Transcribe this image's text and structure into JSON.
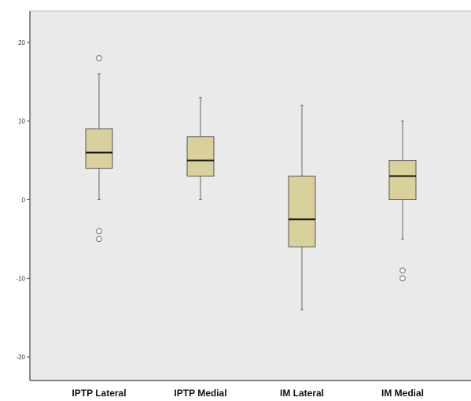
{
  "chart_data": {
    "type": "boxplot",
    "title": "",
    "xlabel": "",
    "ylabel": "",
    "ylim": [
      -23,
      24
    ],
    "yticks": [
      -20,
      -10,
      0,
      10,
      20
    ],
    "grid": false,
    "legend": "none",
    "colors": {
      "plot_background": "#eaeaea",
      "box_fill": "#d9d09c",
      "box_stroke": "#555555",
      "median": "#111111",
      "whisker": "#666666",
      "axis": "#444444"
    },
    "categories": [
      "IPTP Lateral",
      "IPTP Medial",
      "IM Lateral",
      "IM Medial"
    ],
    "boxes": [
      {
        "category": "IPTP Lateral",
        "min": 0,
        "q1": 4,
        "median": 6,
        "q3": 9,
        "max": 16,
        "outliers": [
          18,
          -4,
          -5
        ]
      },
      {
        "category": "IPTP Medial",
        "min": 0,
        "q1": 3,
        "median": 5,
        "q3": 8,
        "max": 13,
        "outliers": []
      },
      {
        "category": "IM Lateral",
        "min": -14,
        "q1": -6,
        "median": -2.5,
        "q3": 3,
        "max": 12,
        "outliers": []
      },
      {
        "category": "IM Medial",
        "min": -5,
        "q1": 0,
        "median": 3,
        "q3": 5,
        "max": 10,
        "outliers": [
          -9,
          -10
        ]
      }
    ]
  }
}
